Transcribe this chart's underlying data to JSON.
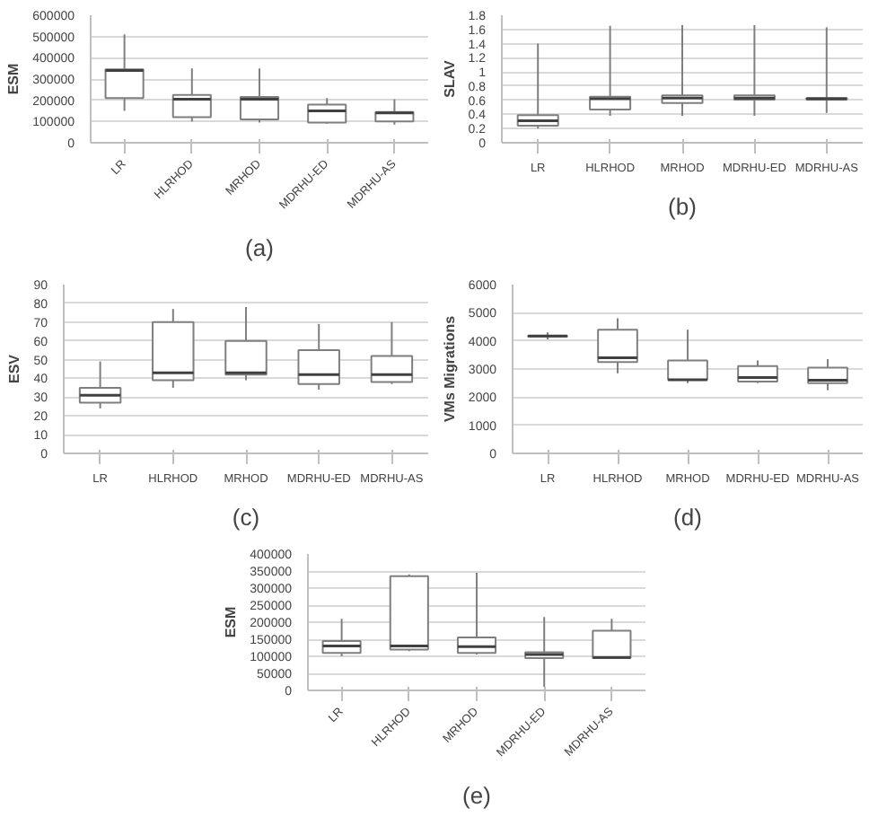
{
  "chart_data": [
    {
      "type": "box",
      "title": "(a)",
      "ylabel": "ESM",
      "categories": [
        "LR",
        "HLRHOD",
        "MRHOD",
        "MDRHU-ED",
        "MDRHU-AS"
      ],
      "ylim": [
        0,
        600000
      ],
      "yticks": [
        0,
        100000,
        200000,
        300000,
        400000,
        500000,
        600000
      ],
      "grid": "y",
      "boxes": [
        {
          "low": 150000,
          "q1": 210000,
          "median": 340000,
          "q3": 345000,
          "high": 510000
        },
        {
          "low": 100000,
          "q1": 120000,
          "median": 205000,
          "q3": 225000,
          "high": 350000
        },
        {
          "low": 95000,
          "q1": 110000,
          "median": 205000,
          "q3": 215000,
          "high": 350000
        },
        {
          "low": 90000,
          "q1": 95000,
          "median": 150000,
          "q3": 180000,
          "high": 210000
        },
        {
          "low": 85000,
          "q1": 100000,
          "median": 140000,
          "q3": 145000,
          "high": 205000
        }
      ]
    },
    {
      "type": "box",
      "title": "(b)",
      "ylabel": "SLAV",
      "categories": [
        "LR",
        "HLRHOD",
        "MRHOD",
        "MDRHU-ED",
        "MDRHU-AS"
      ],
      "ylim": [
        0,
        1.8
      ],
      "yticks": [
        0,
        0.2,
        0.4,
        0.6,
        0.8,
        1,
        1.2,
        1.4,
        1.6,
        1.8
      ],
      "grid": "y",
      "boxes": [
        {
          "low": 0.2,
          "q1": 0.24,
          "median": 0.31,
          "q3": 0.39,
          "high": 1.4
        },
        {
          "low": 0.38,
          "q1": 0.47,
          "median": 0.62,
          "q3": 0.65,
          "high": 1.65
        },
        {
          "low": 0.38,
          "q1": 0.56,
          "median": 0.63,
          "q3": 0.67,
          "high": 1.66
        },
        {
          "low": 0.38,
          "q1": 0.61,
          "median": 0.63,
          "q3": 0.67,
          "high": 1.66
        },
        {
          "low": 0.42,
          "q1": 0.61,
          "median": 0.62,
          "q3": 0.63,
          "high": 1.63
        }
      ]
    },
    {
      "type": "box",
      "title": "(c)",
      "ylabel": "ESV",
      "categories": [
        "LR",
        "HLRHOD",
        "MRHOD",
        "MDRHU-ED",
        "MDRHU-AS"
      ],
      "ylim": [
        0,
        90
      ],
      "yticks": [
        0,
        10,
        20,
        30,
        40,
        50,
        60,
        70,
        80,
        90
      ],
      "grid": "y",
      "boxes": [
        {
          "low": 24,
          "q1": 27,
          "median": 31,
          "q3": 35,
          "high": 49
        },
        {
          "low": 35,
          "q1": 39,
          "median": 43,
          "q3": 70,
          "high": 77
        },
        {
          "low": 39,
          "q1": 42,
          "median": 43,
          "q3": 60,
          "high": 78
        },
        {
          "low": 34,
          "q1": 37,
          "median": 42,
          "q3": 55,
          "high": 69
        },
        {
          "low": 37,
          "q1": 38,
          "median": 42,
          "q3": 52,
          "high": 70
        }
      ]
    },
    {
      "type": "box",
      "title": "(d)",
      "ylabel": "VMs Migrations",
      "categories": [
        "LR",
        "HLRHOD",
        "MRHOD",
        "MDRHU-ED",
        "MDRHU-AS"
      ],
      "ylim": [
        0,
        6000
      ],
      "yticks": [
        0,
        1000,
        2000,
        3000,
        4000,
        5000,
        6000
      ],
      "grid": "y",
      "boxes": [
        {
          "low": 4050,
          "q1": 4150,
          "median": 4170,
          "q3": 4180,
          "high": 4300
        },
        {
          "low": 2850,
          "q1": 3250,
          "median": 3400,
          "q3": 4400,
          "high": 4800
        },
        {
          "low": 2500,
          "q1": 2620,
          "median": 2620,
          "q3": 3300,
          "high": 4400
        },
        {
          "low": 2500,
          "q1": 2550,
          "median": 2700,
          "q3": 3100,
          "high": 3300
        },
        {
          "low": 2250,
          "q1": 2500,
          "median": 2600,
          "q3": 3050,
          "high": 3350
        }
      ]
    },
    {
      "type": "box",
      "title": "(e)",
      "ylabel": "ESM",
      "categories": [
        "LR",
        "HLRHOD",
        "MRHOD",
        "MDRHU-ED",
        "MDRHU-AS"
      ],
      "ylim": [
        0,
        400000
      ],
      "yticks": [
        0,
        50000,
        100000,
        150000,
        200000,
        250000,
        300000,
        350000,
        400000
      ],
      "grid": "y",
      "boxes": [
        {
          "low": 100000,
          "q1": 110000,
          "median": 130000,
          "q3": 145000,
          "high": 210000
        },
        {
          "low": 115000,
          "q1": 120000,
          "median": 130000,
          "q3": 335000,
          "high": 340000
        },
        {
          "low": 105000,
          "q1": 110000,
          "median": 128000,
          "q3": 155000,
          "high": 345000
        },
        {
          "low": 10000,
          "q1": 95000,
          "median": 105000,
          "q3": 112000,
          "high": 215000
        },
        {
          "low": 95000,
          "q1": 95000,
          "median": 97000,
          "q3": 175000,
          "high": 210000
        }
      ]
    }
  ]
}
